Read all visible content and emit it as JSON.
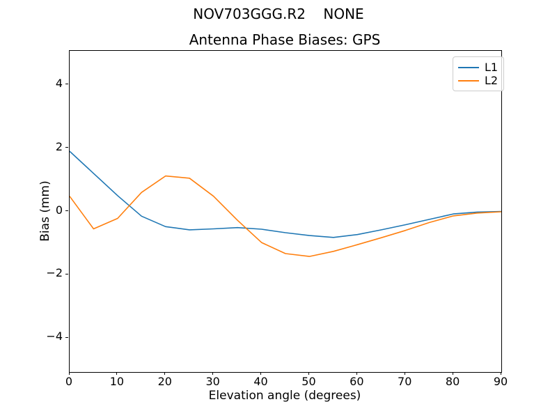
{
  "figure": {
    "suptitle": "NOV703GGG.R2    NONE",
    "background": "#ffffff",
    "text_color": "#000000",
    "spine_color": "#000000",
    "legend_border_color": "#cccccc"
  },
  "chart_data": {
    "type": "line",
    "suptitle": "NOV703GGG.R2    NONE",
    "title": "Antenna Phase Biases: GPS",
    "xlabel": "Elevation angle (degrees)",
    "ylabel": "Bias (mm)",
    "xlim": [
      0,
      90
    ],
    "ylim": [
      -5.07,
      5.07
    ],
    "xticks": [
      0,
      10,
      20,
      30,
      40,
      50,
      60,
      70,
      80,
      90
    ],
    "yticks": [
      -4,
      -2,
      0,
      2,
      4
    ],
    "grid": false,
    "legend_position": "upper right",
    "x": [
      0,
      5,
      10,
      15,
      20,
      25,
      30,
      35,
      40,
      45,
      50,
      55,
      60,
      65,
      70,
      75,
      80,
      85,
      90
    ],
    "series": [
      {
        "name": "L1",
        "color": "#1f77b4",
        "values": [
          1.9,
          1.2,
          0.5,
          -0.15,
          -0.48,
          -0.58,
          -0.55,
          -0.51,
          -0.56,
          -0.67,
          -0.76,
          -0.82,
          -0.73,
          -0.58,
          -0.42,
          -0.25,
          -0.08,
          -0.02,
          0.0
        ]
      },
      {
        "name": "L2",
        "color": "#ff7f0e",
        "values": [
          0.48,
          -0.55,
          -0.22,
          0.6,
          1.12,
          1.05,
          0.48,
          -0.28,
          -0.98,
          -1.33,
          -1.42,
          -1.26,
          -1.05,
          -0.83,
          -0.6,
          -0.35,
          -0.14,
          -0.05,
          -0.01
        ]
      }
    ]
  }
}
